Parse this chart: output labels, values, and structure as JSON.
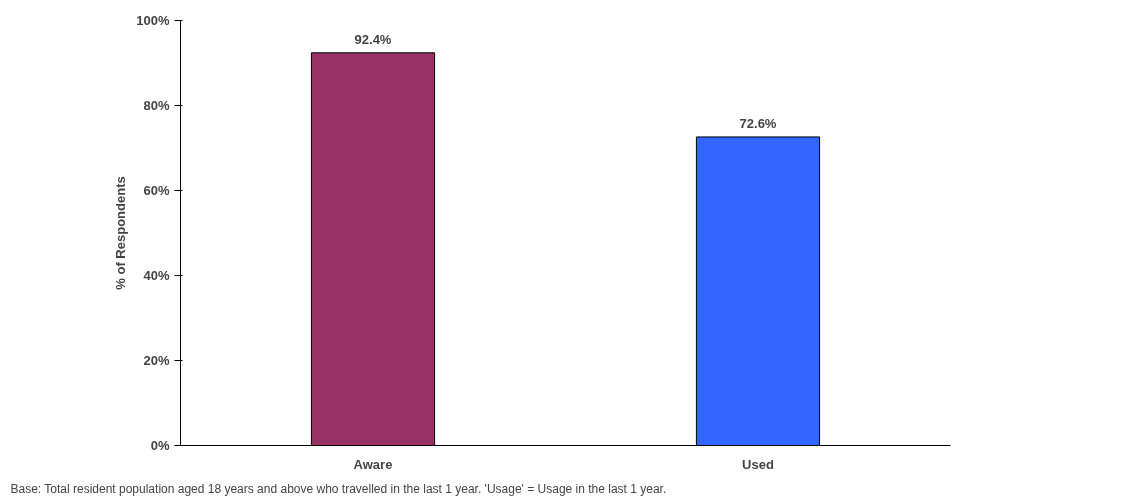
{
  "chart_data": {
    "type": "bar",
    "categories": [
      "Aware",
      "Used"
    ],
    "colors": [
      "#993366",
      "#3366ff"
    ],
    "values": [
      92.4,
      72.6
    ],
    "value_labels": [
      "92.4%",
      "72.6%"
    ],
    "ylabel": "% of Respondents",
    "ylim": [
      0,
      100
    ],
    "yticks": [
      {
        "value": 0,
        "label": "0%"
      },
      {
        "value": 20,
        "label": "20%"
      },
      {
        "value": 40,
        "label": "40%"
      },
      {
        "value": 60,
        "label": "60%"
      },
      {
        "value": 80,
        "label": "80%"
      },
      {
        "value": 100,
        "label": "100%"
      }
    ],
    "grid": false,
    "annotations": [
      "Base: Total resident population aged 18 years and above who travelled in the last 1 year. 'Usage' = Usage in the last 1 year."
    ]
  }
}
